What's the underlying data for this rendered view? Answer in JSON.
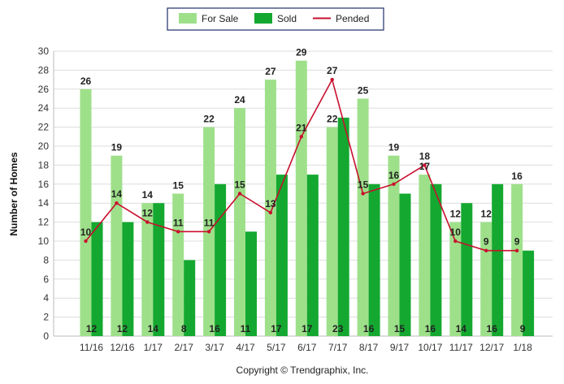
{
  "colors": {
    "for_sale": "#9ee08a",
    "sold": "#14a830",
    "pended": "#c8102e",
    "legend_border": "#1e2f6a",
    "grid": "#dddddd"
  },
  "copyright": "Copyright © Trendgraphix, Inc.",
  "chart_data": {
    "type": "bar",
    "ylabel": "Number of Homes",
    "xlabel": "",
    "ylim": [
      0,
      30
    ],
    "yticks": [
      0,
      2,
      4,
      6,
      8,
      10,
      12,
      14,
      16,
      18,
      20,
      22,
      24,
      26,
      28,
      30
    ],
    "grid": true,
    "legend_position": "top-center",
    "categories": [
      "11/16",
      "12/16",
      "1/17",
      "2/17",
      "3/17",
      "4/17",
      "5/17",
      "6/17",
      "7/17",
      "8/17",
      "9/17",
      "10/17",
      "11/17",
      "12/17",
      "1/18"
    ],
    "series": [
      {
        "name": "For Sale",
        "type": "bar",
        "values": [
          26,
          19,
          14,
          15,
          22,
          24,
          27,
          29,
          22,
          25,
          19,
          17,
          12,
          12,
          16
        ]
      },
      {
        "name": "Sold",
        "type": "bar",
        "values": [
          12,
          12,
          14,
          8,
          16,
          11,
          17,
          17,
          23,
          16,
          15,
          16,
          14,
          16,
          9
        ]
      },
      {
        "name": "Pended",
        "type": "line",
        "values": [
          10,
          14,
          12,
          11,
          11,
          15,
          13,
          21,
          27,
          15,
          16,
          18,
          10,
          9,
          9
        ]
      }
    ]
  }
}
